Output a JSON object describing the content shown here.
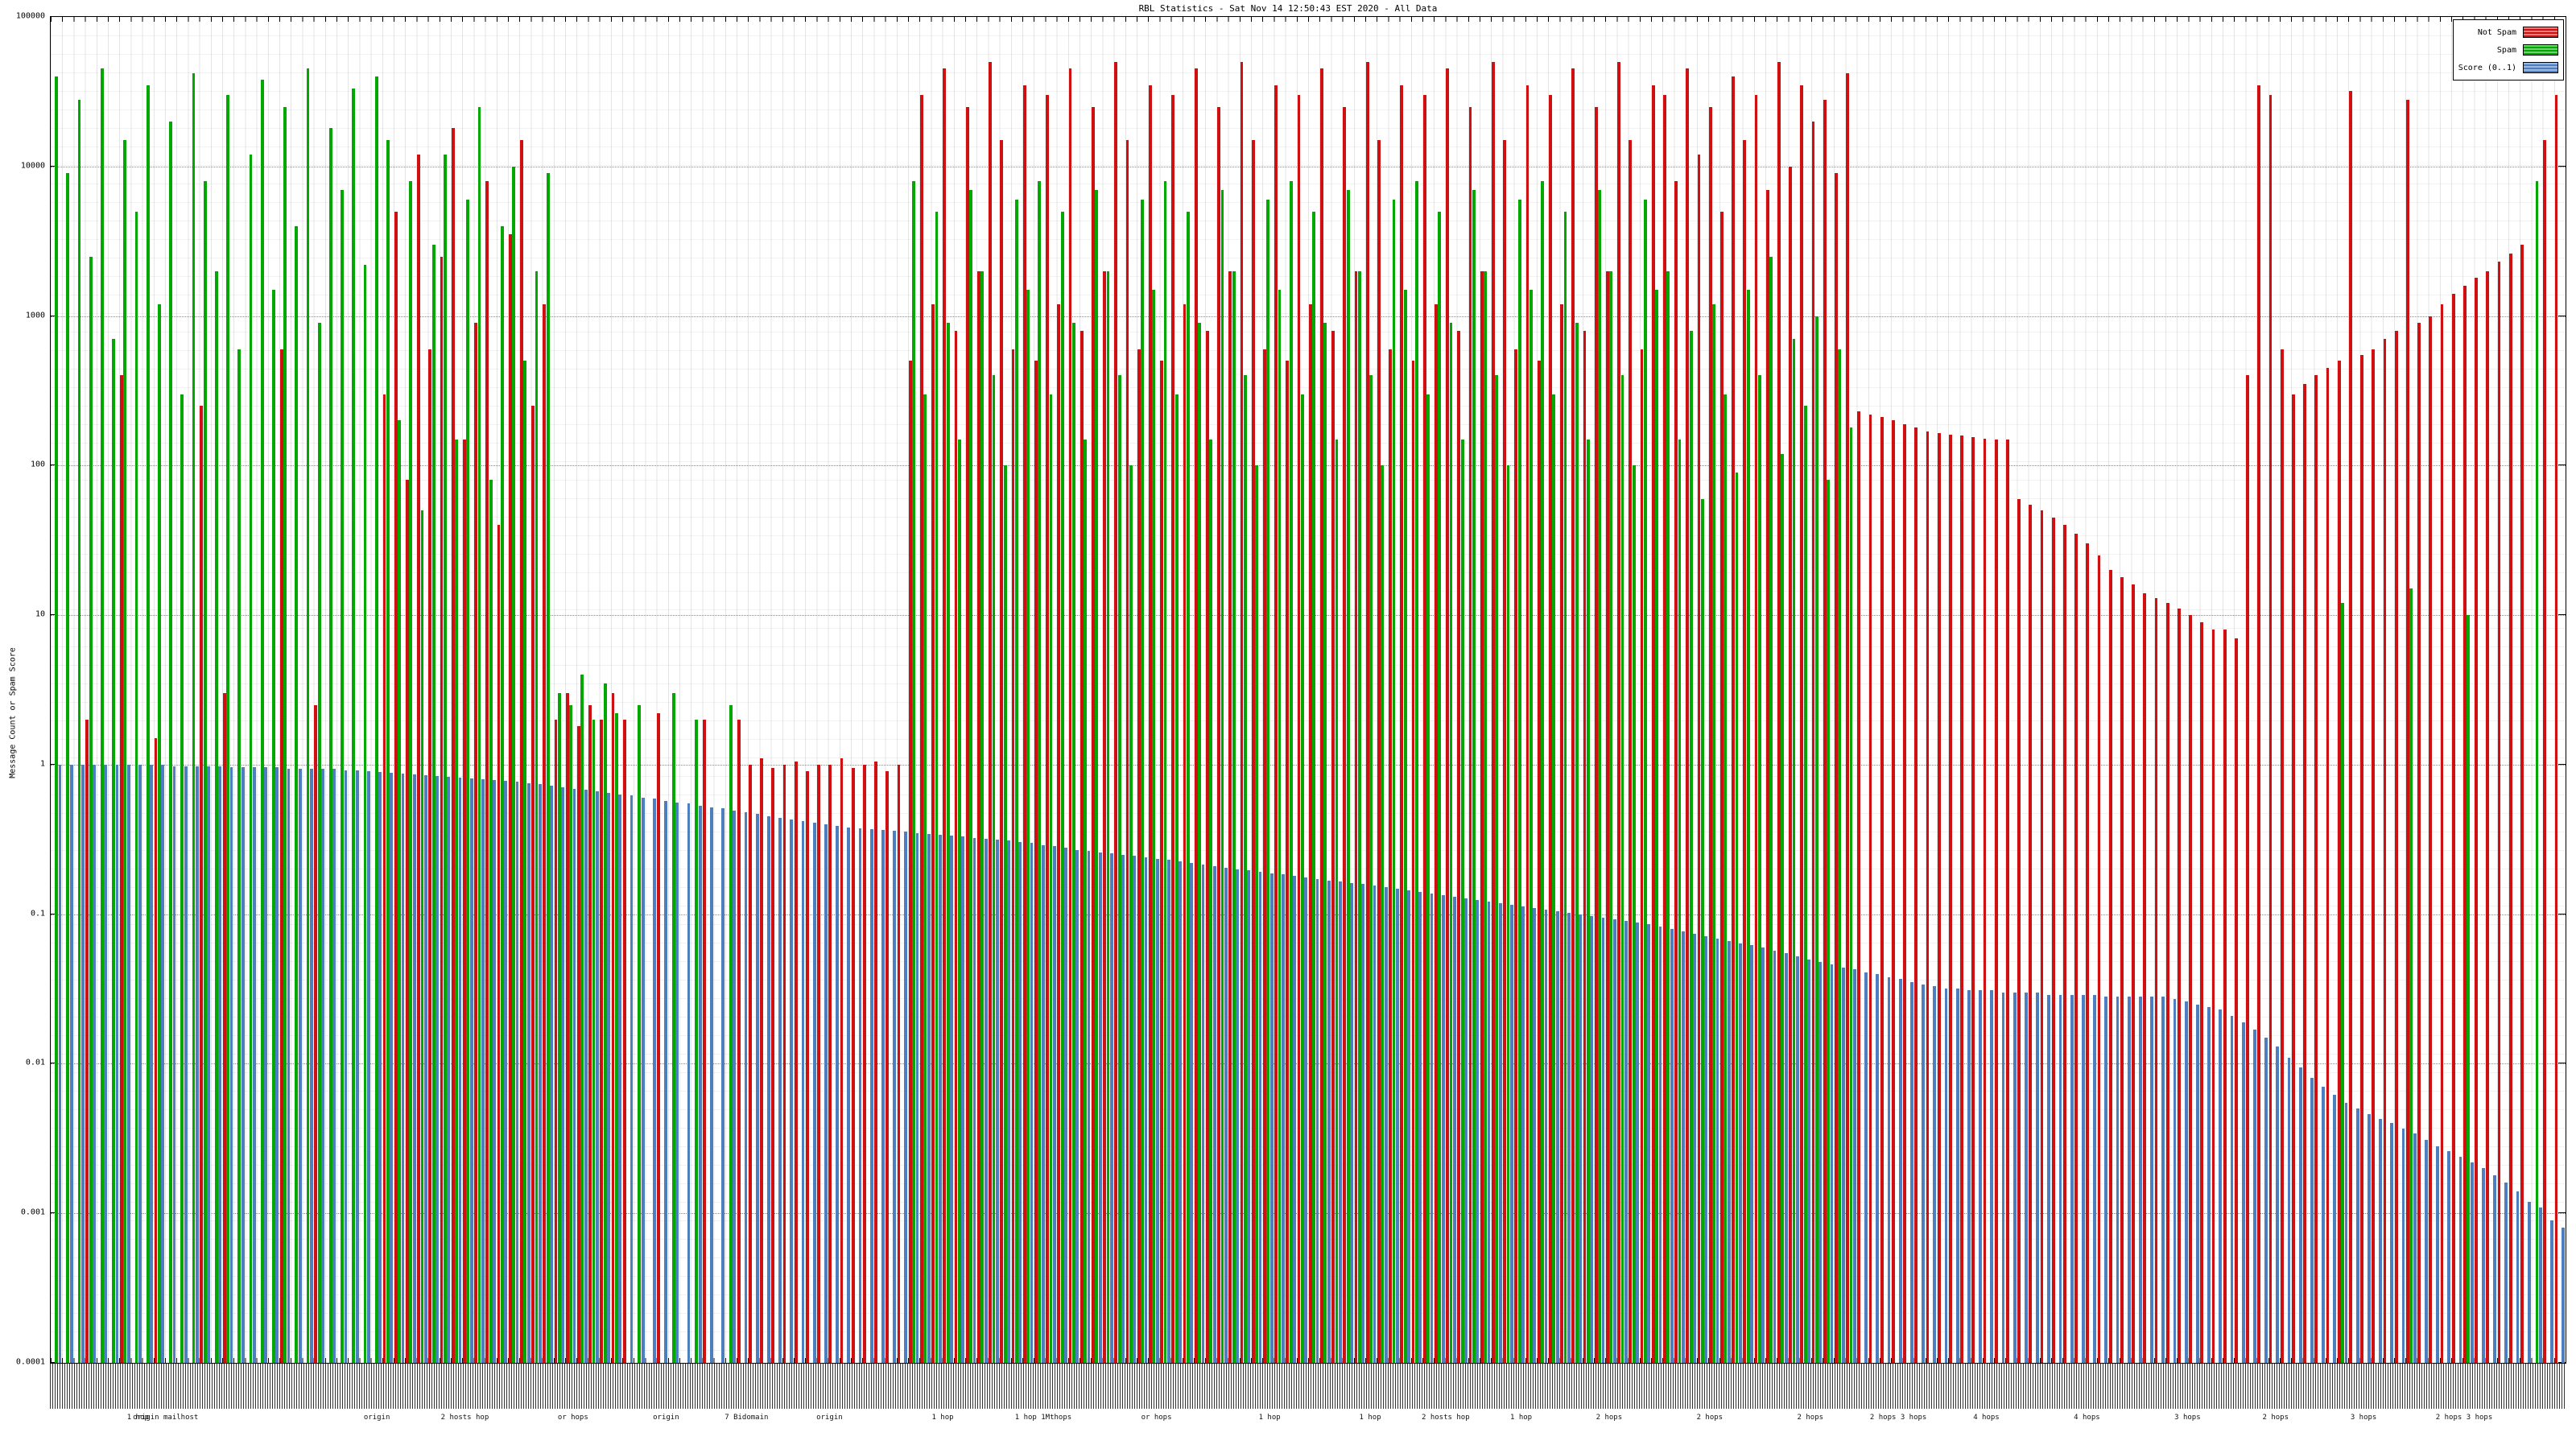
{
  "title": "RBL Statistics - Sat Nov 14 12:50:43 EST 2020 - All Data",
  "y_axis": {
    "label": "Message Count or Spam Score",
    "ticks": [
      "100000",
      "10000",
      "1000",
      "100",
      "10",
      "1",
      "0.1",
      "0.01",
      "0.001",
      "0.0001"
    ]
  },
  "legend": [
    {
      "label": "Not Spam",
      "color": "#d01010"
    },
    {
      "label": "Spam",
      "color": "#00a800"
    },
    {
      "label": "Score (0..1)",
      "color": "#4d7ebf"
    }
  ],
  "x_axis": {
    "group_labels_legible": [
      {
        "pct": 3.5,
        "text": "1 hop"
      },
      {
        "pct": 4.6,
        "text": "origin mailhost"
      },
      {
        "pct": 13,
        "text": "origin"
      },
      {
        "pct": 16.5,
        "text": "2 hosts hop"
      },
      {
        "pct": 20.8,
        "text": "or hops"
      },
      {
        "pct": 24.5,
        "text": "origin"
      },
      {
        "pct": 27.7,
        "text": "7 Bidomain"
      },
      {
        "pct": 31,
        "text": "origin"
      },
      {
        "pct": 35.5,
        "text": "1 hop"
      },
      {
        "pct": 39.5,
        "text": "1 hop 1Mthops"
      },
      {
        "pct": 44,
        "text": "or hops"
      },
      {
        "pct": 48.5,
        "text": "1 hop"
      },
      {
        "pct": 52.5,
        "text": "1 hop"
      },
      {
        "pct": 55.5,
        "text": "2 hosts hop"
      },
      {
        "pct": 58.5,
        "text": "1 hop"
      },
      {
        "pct": 62,
        "text": "2 hops"
      },
      {
        "pct": 66,
        "text": "2 hops"
      },
      {
        "pct": 70,
        "text": "2 hops"
      },
      {
        "pct": 73.5,
        "text": "2 hops 3 hops"
      },
      {
        "pct": 77,
        "text": "4 hops"
      },
      {
        "pct": 81,
        "text": "4 hops"
      },
      {
        "pct": 85,
        "text": "3 hops"
      },
      {
        "pct": 88.5,
        "text": "2 hops"
      },
      {
        "pct": 92,
        "text": "3 hops"
      },
      {
        "pct": 96,
        "text": "2 hops 3 hops"
      }
    ]
  },
  "chart_data": {
    "type": "bar",
    "scale": "log",
    "title": "RBL Statistics - Sat Nov 14 12:50:43 EST 2020 - All Data",
    "xlabel": "",
    "ylabel": "Message Count or Spam Score",
    "ylim": [
      0.0001,
      100000
    ],
    "grid": true,
    "legend_position": "top-right",
    "series": [
      {
        "name": "Not Spam",
        "color": "#d01010",
        "values": [
          0,
          0,
          0,
          2,
          0,
          0,
          400,
          0,
          0,
          1.5,
          0,
          0,
          0,
          250,
          0,
          3,
          0,
          0,
          0,
          0,
          600,
          0,
          0,
          2.5,
          0,
          0,
          0,
          0,
          0,
          300,
          5000,
          80,
          12000,
          600,
          2500,
          18000,
          150,
          900,
          8000,
          40,
          3500,
          15000,
          250,
          1200,
          2,
          3,
          1.8,
          2.5,
          2,
          3,
          2,
          0,
          0,
          2.2,
          0,
          0,
          0,
          2,
          0,
          0,
          2,
          1,
          1.1,
          0.95,
          1,
          1.05,
          0.9,
          1,
          1,
          1.1,
          0.95,
          1,
          1.05,
          0.9,
          1,
          500,
          30000,
          1200,
          45000,
          800,
          25000,
          2000,
          50000,
          15000,
          600,
          35000,
          500,
          30000,
          1200,
          45000,
          800,
          25000,
          2000,
          50000,
          15000,
          600,
          35000,
          500,
          30000,
          1200,
          45000,
          800,
          25000,
          2000,
          50000,
          15000,
          600,
          35000,
          500,
          30000,
          1200,
          45000,
          800,
          25000,
          2000,
          50000,
          15000,
          600,
          35000,
          500,
          30000,
          1200,
          45000,
          800,
          25000,
          2000,
          50000,
          15000,
          600,
          35000,
          500,
          30000,
          1200,
          45000,
          800,
          25000,
          2000,
          50000,
          15000,
          600,
          35000,
          30000,
          8000,
          45000,
          12000,
          25000,
          5000,
          40000,
          15000,
          30000,
          7000,
          50000,
          10000,
          35000,
          20000,
          28000,
          9000,
          42000,
          230,
          220,
          210,
          200,
          190,
          180,
          170,
          165,
          160,
          158,
          155,
          152,
          150,
          150,
          60,
          55,
          50,
          45,
          40,
          35,
          30,
          25,
          20,
          18,
          16,
          14,
          13,
          12,
          11,
          10,
          9,
          8,
          8,
          7,
          400,
          35000,
          30000,
          600,
          300,
          350,
          400,
          450,
          500,
          32000,
          550,
          600,
          700,
          800,
          28000,
          900,
          1000,
          1200,
          1400,
          1600,
          1800,
          2000,
          2300,
          2600,
          3000,
          0,
          15000,
          30000
        ]
      },
      {
        "name": "Spam",
        "color": "#00a800",
        "values": [
          40000,
          9000,
          28000,
          2500,
          45000,
          700,
          15000,
          5000,
          35000,
          1200,
          20000,
          300,
          42000,
          8000,
          2000,
          30000,
          600,
          12000,
          38000,
          1500,
          25000,
          4000,
          45000,
          900,
          18000,
          7000,
          33000,
          2200,
          40000,
          15000,
          200,
          8000,
          50,
          3000,
          12000,
          150,
          6000,
          25000,
          80,
          4000,
          10000,
          500,
          2000,
          9000,
          3,
          2.5,
          4,
          2,
          3.5,
          2.2,
          0,
          2.5,
          0,
          0,
          3,
          0,
          2,
          0,
          0,
          2.5,
          0,
          0,
          0,
          0,
          0,
          0,
          0,
          0,
          0,
          0,
          0,
          0,
          0,
          0,
          0,
          8000,
          300,
          5000,
          900,
          150,
          7000,
          2000,
          400,
          100,
          6000,
          1500,
          8000,
          300,
          5000,
          900,
          150,
          7000,
          2000,
          400,
          100,
          6000,
          1500,
          8000,
          300,
          5000,
          900,
          150,
          7000,
          2000,
          400,
          100,
          6000,
          1500,
          8000,
          300,
          5000,
          900,
          150,
          7000,
          2000,
          400,
          100,
          6000,
          1500,
          8000,
          300,
          5000,
          900,
          150,
          7000,
          2000,
          400,
          100,
          6000,
          1500,
          8000,
          300,
          5000,
          900,
          150,
          7000,
          2000,
          400,
          100,
          6000,
          1500,
          2000,
          150,
          800,
          60,
          1200,
          300,
          90,
          1500,
          400,
          2500,
          120,
          700,
          250,
          1000,
          80,
          600,
          180,
          0,
          0,
          0,
          0,
          0,
          0,
          0,
          0,
          0,
          0,
          0,
          0,
          0,
          0,
          0,
          0,
          0,
          0,
          0,
          0,
          0,
          0,
          0,
          0,
          0,
          0,
          0,
          0,
          0,
          0,
          0,
          0,
          0,
          0,
          0,
          0,
          0,
          0,
          0,
          0,
          0,
          0,
          12,
          0,
          0,
          0,
          0,
          0,
          15,
          0,
          0,
          0,
          0,
          10,
          0,
          0,
          0,
          0,
          0,
          8000,
          0,
          0
        ]
      },
      {
        "name": "Score (0..1)",
        "color": "#4d7ebf",
        "values": [
          1,
          1,
          1,
          1,
          1,
          1,
          1,
          1,
          1,
          1,
          0.98,
          0.98,
          0.98,
          0.98,
          0.98,
          0.96,
          0.96,
          0.96,
          0.96,
          0.96,
          0.94,
          0.94,
          0.94,
          0.94,
          0.94,
          0.92,
          0.91,
          0.9,
          0.89,
          0.88,
          0.87,
          0.86,
          0.85,
          0.84,
          0.83,
          0.82,
          0.81,
          0.8,
          0.79,
          0.78,
          0.77,
          0.75,
          0.74,
          0.72,
          0.71,
          0.69,
          0.68,
          0.66,
          0.65,
          0.63,
          0.62,
          0.6,
          0.59,
          0.57,
          0.56,
          0.55,
          0.53,
          0.52,
          0.51,
          0.49,
          0.48,
          0.47,
          0.45,
          0.44,
          0.43,
          0.42,
          0.41,
          0.4,
          0.39,
          0.38,
          0.375,
          0.37,
          0.365,
          0.36,
          0.355,
          0.35,
          0.345,
          0.34,
          0.335,
          0.33,
          0.325,
          0.32,
          0.315,
          0.31,
          0.305,
          0.3,
          0.29,
          0.285,
          0.28,
          0.27,
          0.265,
          0.26,
          0.255,
          0.25,
          0.245,
          0.24,
          0.235,
          0.23,
          0.225,
          0.22,
          0.215,
          0.21,
          0.205,
          0.2,
          0.196,
          0.192,
          0.188,
          0.184,
          0.18,
          0.176,
          0.172,
          0.168,
          0.165,
          0.162,
          0.16,
          0.156,
          0.152,
          0.148,
          0.145,
          0.141,
          0.138,
          0.134,
          0.131,
          0.128,
          0.125,
          0.122,
          0.119,
          0.116,
          0.113,
          0.11,
          0.107,
          0.105,
          0.102,
          0.1,
          0.097,
          0.095,
          0.092,
          0.09,
          0.088,
          0.086,
          0.083,
          0.08,
          0.077,
          0.074,
          0.071,
          0.069,
          0.066,
          0.064,
          0.062,
          0.06,
          0.057,
          0.055,
          0.052,
          0.05,
          0.048,
          0.046,
          0.044,
          0.043,
          0.041,
          0.04,
          0.038,
          0.037,
          0.035,
          0.034,
          0.033,
          0.032,
          0.032,
          0.031,
          0.031,
          0.031,
          0.03,
          0.03,
          0.03,
          0.03,
          0.029,
          0.029,
          0.029,
          0.029,
          0.029,
          0.028,
          0.028,
          0.028,
          0.028,
          0.028,
          0.028,
          0.027,
          0.026,
          0.025,
          0.024,
          0.023,
          0.021,
          0.019,
          0.017,
          0.015,
          0.013,
          0.011,
          0.0095,
          0.008,
          0.007,
          0.0062,
          0.0055,
          0.005,
          0.0046,
          0.0043,
          0.004,
          0.0037,
          0.0034,
          0.0031,
          0.0028,
          0.0026,
          0.0024,
          0.0022,
          0.002,
          0.0018,
          0.0016,
          0.0014,
          0.0012,
          0.0011,
          0.0009,
          0.0008
        ]
      }
    ]
  }
}
